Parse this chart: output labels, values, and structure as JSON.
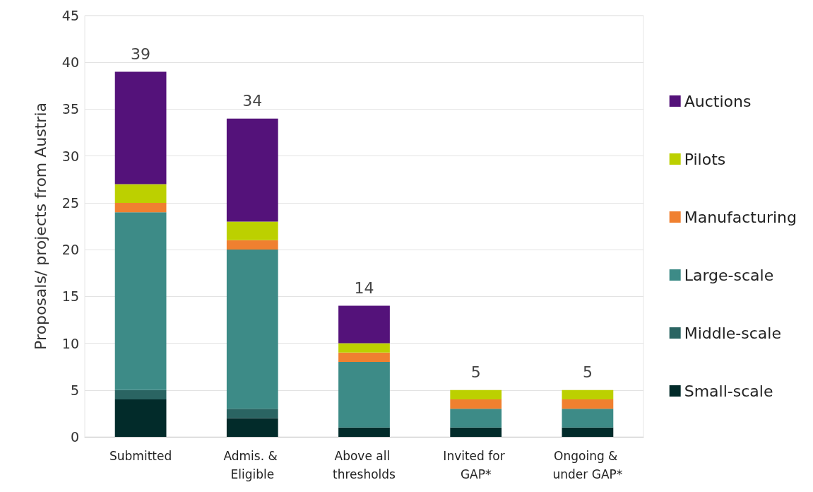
{
  "chart_data": {
    "type": "bar",
    "stacked": true,
    "ylabel": "Proposals/ projects from Austria",
    "categories": [
      "Submitted",
      "Admis. & Eligible",
      "Above all thresholds",
      "Invited for GAP*",
      "Ongoing & under GAP*"
    ],
    "series": [
      {
        "name": "Small-scale",
        "color": "#022b2a",
        "values": [
          4,
          2,
          1,
          1,
          1
        ]
      },
      {
        "name": "Middle-scale",
        "color": "#2a6462",
        "values": [
          1,
          1,
          0,
          0,
          0
        ]
      },
      {
        "name": "Large-scale",
        "color": "#3d8b87",
        "values": [
          19,
          17,
          7,
          2,
          2
        ]
      },
      {
        "name": "Manufacturing",
        "color": "#f08030",
        "values": [
          1,
          1,
          1,
          1,
          1
        ]
      },
      {
        "name": "Pilots",
        "color": "#bcd000",
        "values": [
          2,
          2,
          1,
          1,
          1
        ]
      },
      {
        "name": "Auctions",
        "color": "#54127a",
        "values": [
          12,
          11,
          4,
          0,
          0
        ]
      }
    ],
    "totals": [
      "39",
      "34",
      "14",
      "5",
      "5"
    ],
    "ylim": [
      0,
      45
    ],
    "yticks": [
      0,
      5,
      10,
      15,
      20,
      25,
      30,
      35,
      40,
      45
    ],
    "grid": "y",
    "legend": "right"
  }
}
